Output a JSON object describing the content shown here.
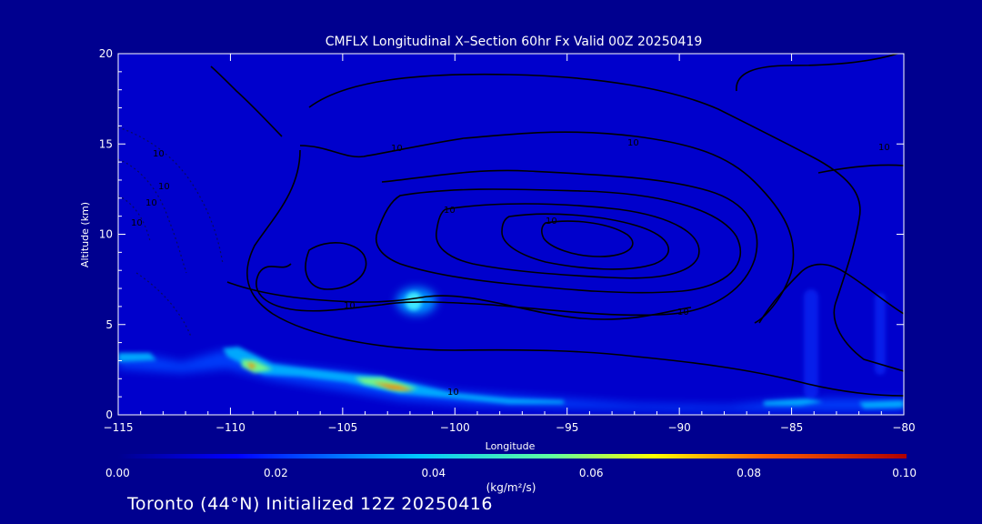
{
  "chart_data": {
    "type": "heatmap",
    "title": "CMFLX Longitudinal X–Section 60hr  Fx Valid 00Z 20250419",
    "xlabel": "Longitude",
    "ylabel": "Altitude (km)",
    "xlim": [
      -115,
      -80
    ],
    "ylim": [
      0,
      20
    ],
    "x_ticks": [
      -115,
      -110,
      -105,
      -100,
      -95,
      -90,
      -85,
      -80
    ],
    "x_tick_labels": [
      "−115",
      "−110",
      "−105",
      "−100",
      "−95",
      "−90",
      "−85",
      "−80"
    ],
    "y_ticks": [
      0,
      5,
      10,
      15,
      20
    ],
    "y_tick_labels": [
      "0",
      "5",
      "10",
      "15",
      "20"
    ],
    "colorbar": {
      "min": 0.0,
      "max": 0.1,
      "ticks": [
        "0.00",
        "0.02",
        "0.04",
        "0.06",
        "0.08",
        "0.10"
      ],
      "units": "(kg/m²/s)"
    },
    "shaded_field": [
      {
        "lon": -115.0,
        "alt": 3.2,
        "value": 0.03
      },
      {
        "lon": -114.0,
        "alt": 3.1,
        "value": 0.03
      },
      {
        "lon": -110.0,
        "alt": 3.5,
        "value": 0.035
      },
      {
        "lon": -109.2,
        "alt": 2.7,
        "value": 0.08
      },
      {
        "lon": -108.5,
        "alt": 2.3,
        "value": 0.045
      },
      {
        "lon": -107.0,
        "alt": 2.5,
        "value": 0.045
      },
      {
        "lon": -105.0,
        "alt": 2.0,
        "value": 0.06
      },
      {
        "lon": -103.0,
        "alt": 1.6,
        "value": 0.08
      },
      {
        "lon": -102.0,
        "alt": 6.3,
        "value": 0.04
      },
      {
        "lon": -101.0,
        "alt": 1.2,
        "value": 0.035
      },
      {
        "lon": -98.0,
        "alt": 0.9,
        "value": 0.02
      },
      {
        "lon": -95.0,
        "alt": 0.7,
        "value": 0.03
      },
      {
        "lon": -90.0,
        "alt": 0.4,
        "value": 0.015
      },
      {
        "lon": -85.5,
        "alt": 0.6,
        "value": 0.025
      },
      {
        "lon": -81.0,
        "alt": 0.5,
        "value": 0.03
      }
    ],
    "contour_labels": [
      "10",
      "10",
      "10",
      "10",
      "10",
      "10",
      "10",
      "10",
      "10",
      "10",
      "10",
      "10"
    ],
    "footer": "Toronto (44°N) Initialized 12Z 20250416"
  }
}
